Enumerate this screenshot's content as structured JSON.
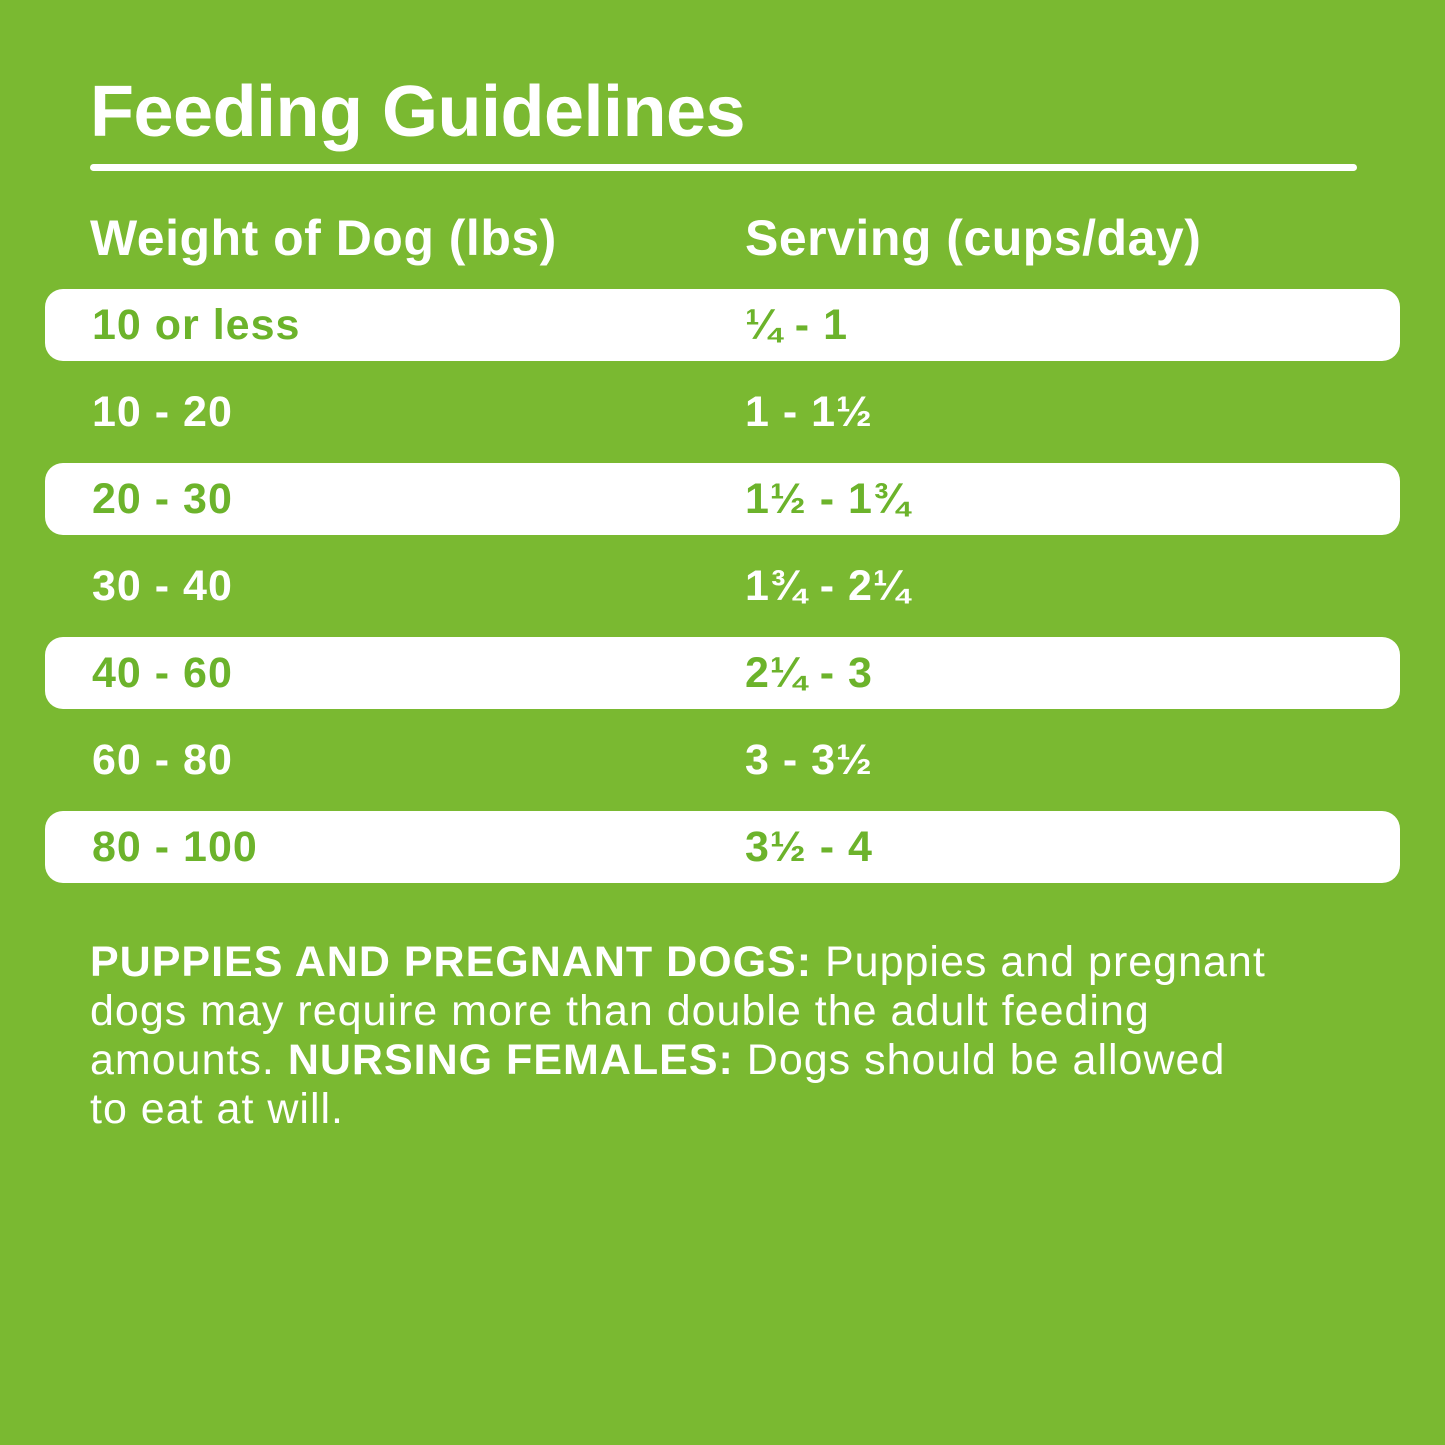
{
  "title": "Feeding Guidelines",
  "colors": {
    "background_green": "#7ab931",
    "text_green": "#6cb32b",
    "row_white": "#ffffff",
    "text_white": "#ffffff"
  },
  "table": {
    "columns": [
      "Weight of Dog (lbs)",
      "Serving (cups/day)"
    ],
    "rows": [
      {
        "weight": "10 or less",
        "serving": "¼ - 1"
      },
      {
        "weight": "10 - 20",
        "serving": "1 - 1½"
      },
      {
        "weight": "20 - 30",
        "serving": "1½ - 1¾"
      },
      {
        "weight": "30 - 40",
        "serving": "1¾ - 2¼"
      },
      {
        "weight": "40 - 60",
        "serving": "2¼ - 3"
      },
      {
        "weight": "60 - 80",
        "serving": "3 - 3½"
      },
      {
        "weight": "80 - 100",
        "serving": "3½ - 4"
      }
    ]
  },
  "note": {
    "lines": [
      [
        {
          "bold": true,
          "text": "PUPPIES AND PREGNANT DOGS:"
        },
        {
          "bold": false,
          "text": " Puppies and pregnant"
        }
      ],
      [
        {
          "bold": false,
          "text": "dogs may require more than double the adult feeding"
        }
      ],
      [
        {
          "bold": false,
          "text": "amounts. "
        },
        {
          "bold": true,
          "text": "NURSING FEMALES:"
        },
        {
          "bold": false,
          "text": " Dogs should be allowed"
        }
      ],
      [
        {
          "bold": false,
          "text": "to eat at will."
        }
      ]
    ]
  },
  "chart_data": {
    "type": "table",
    "title": "Feeding Guidelines",
    "columns": [
      "Weight of Dog (lbs)",
      "Serving (cups/day)"
    ],
    "rows": [
      [
        "10 or less",
        "¼ - 1"
      ],
      [
        "10 - 20",
        "1 - 1½"
      ],
      [
        "20 - 30",
        "1½ - 1¾"
      ],
      [
        "30 - 40",
        "1¾ - 2¼"
      ],
      [
        "40 - 60",
        "2¼ - 3"
      ],
      [
        "60 - 80",
        "3 - 3½"
      ],
      [
        "80 - 100",
        "3½ - 4"
      ]
    ],
    "note": "PUPPIES AND PREGNANT DOGS: Puppies and pregnant dogs may require more than double the adult feeding amounts. NURSING FEMALES: Dogs should be allowed to eat at will."
  }
}
